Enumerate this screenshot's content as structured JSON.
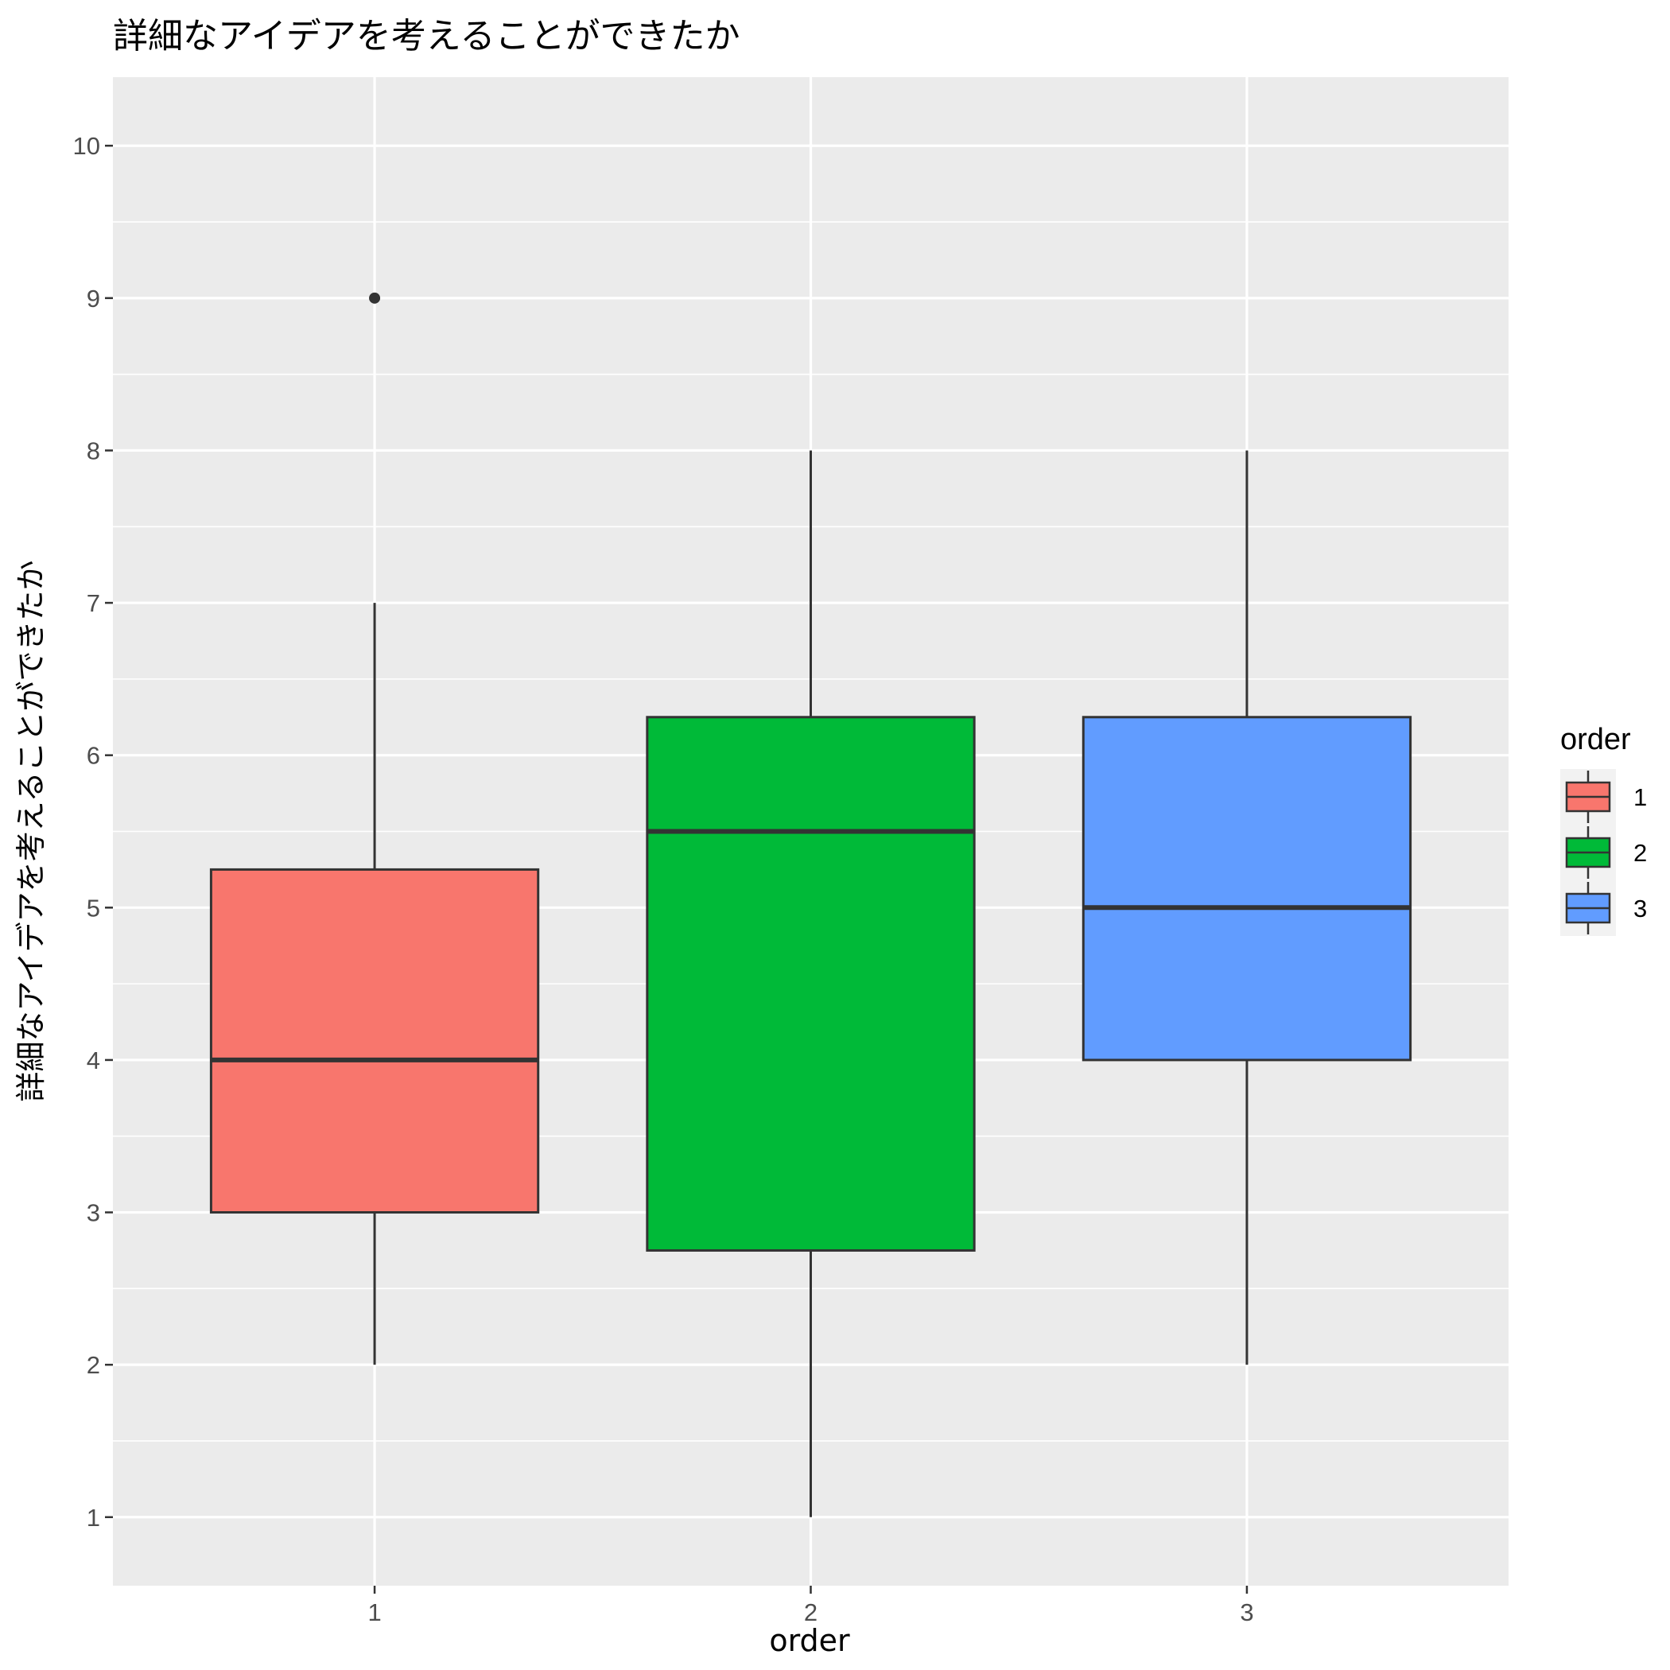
{
  "chart_data": {
    "type": "boxplot",
    "title": "詳細なアイデアを考えることができたか",
    "xlabel": "order",
    "ylabel": "詳細なアイデアを考えることができたか",
    "categories": [
      "1",
      "2",
      "3"
    ],
    "y_ticks": [
      "1",
      "2",
      "3",
      "4",
      "5",
      "6",
      "7",
      "8",
      "9",
      "10"
    ],
    "ylim": [
      0.55,
      10.45
    ],
    "grid": true,
    "legend": {
      "title": "order",
      "placement": "right",
      "entries": [
        "1",
        "2",
        "3"
      ]
    },
    "boxes": [
      {
        "category": "1",
        "whisker_low": 2,
        "q1": 3,
        "median": 4,
        "q3": 5.25,
        "whisker_high": 7,
        "outliers": [
          9
        ],
        "color": "#F8766D"
      },
      {
        "category": "2",
        "whisker_low": 1,
        "q1": 2.75,
        "median": 5.5,
        "q3": 6.25,
        "whisker_high": 8,
        "outliers": [],
        "color": "#00BA38"
      },
      {
        "category": "3",
        "whisker_low": 2,
        "q1": 4,
        "median": 5,
        "q3": 6.25,
        "whisker_high": 8,
        "outliers": [],
        "color": "#619CFF"
      }
    ]
  }
}
